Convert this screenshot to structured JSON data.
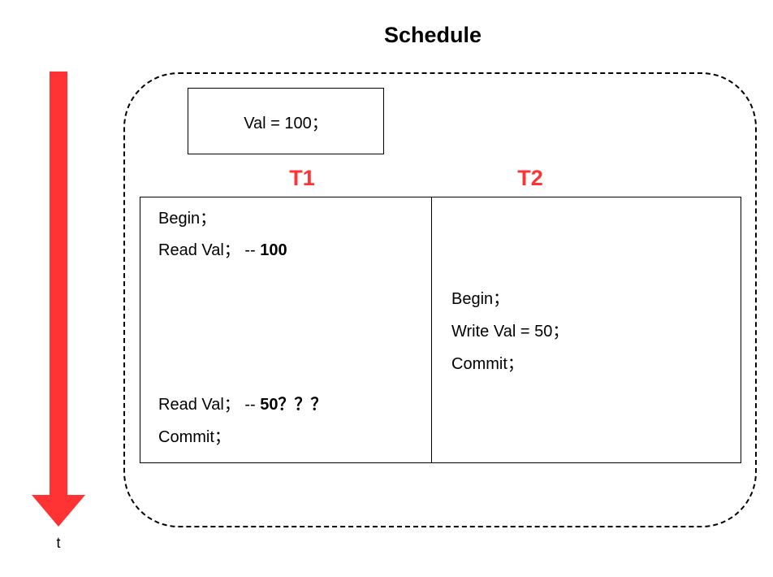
{
  "title": "Schedule",
  "initial_value": "Val = 100；",
  "columns": {
    "t1": "T1",
    "t2": "T2"
  },
  "t1_ops": {
    "begin": "Begin；",
    "read1_stmt": "Read Val；",
    "read1_comment": " -- ",
    "read1_value": "100",
    "read2_stmt": "Read Val；",
    "read2_comment": " -- ",
    "read2_value": "50？？？",
    "commit": "Commit；"
  },
  "t2_ops": {
    "begin": "Begin；",
    "write": "Write Val = 50；",
    "commit": "Commit；"
  },
  "time_axis": {
    "label": "t"
  },
  "colors": {
    "transaction_label": "#ff3333",
    "time_arrow": "#ff3333"
  }
}
